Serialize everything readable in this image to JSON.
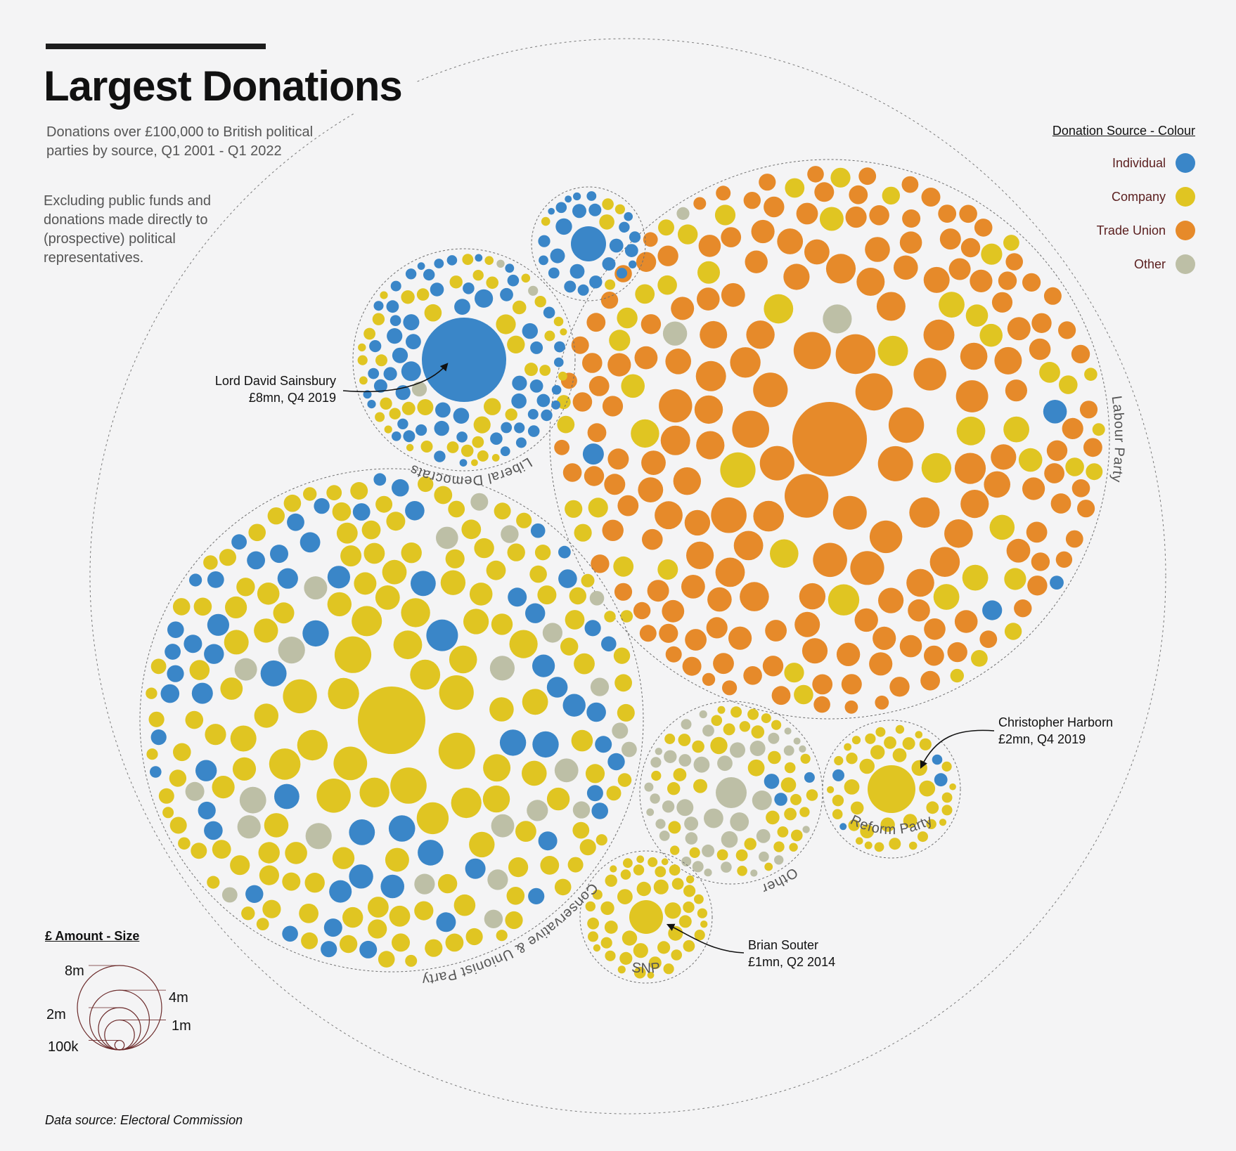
{
  "header": {
    "title": "Largest Donations",
    "subtitle": "Donations over £100,000 to British political parties by source, Q1 2001 - Q1 2022",
    "note": "Excluding public funds and donations made directly to (prospective) political representatives."
  },
  "legend": {
    "title": "Donation Source - Colour",
    "items": [
      {
        "label": "Individual",
        "color": "#3a86c8"
      },
      {
        "label": "Company",
        "color": "#e0c522"
      },
      {
        "label": "Trade Union",
        "color": "#e68a2a"
      },
      {
        "label": "Other",
        "color": "#bdbfa6"
      }
    ]
  },
  "size_legend": {
    "title": "£ Amount - Size",
    "labels": [
      "8m",
      "4m",
      "2m",
      "1m",
      "100k"
    ],
    "values_gbp": [
      8000000,
      4000000,
      2000000,
      1000000,
      100000
    ]
  },
  "source": "Data source: Electoral Commission",
  "chart_data": {
    "type": "packed-bubble",
    "title": "Largest Donations",
    "unit": "GBP",
    "groups": [
      {
        "label": "Labour Party",
        "dominant_source": "Trade Union",
        "mix": {
          "Trade Union": 0.78,
          "Company": 0.18,
          "Individual": 0.03,
          "Other": 0.01
        }
      },
      {
        "label": "Conservative & Unionist Party",
        "dominant_source": "Company",
        "mix": {
          "Company": 0.62,
          "Individual": 0.28,
          "Other": 0.1
        }
      },
      {
        "label": "Liberal Democrats",
        "dominant_source": "Individual",
        "mix": {
          "Individual": 0.52,
          "Company": 0.4,
          "Other": 0.08
        }
      },
      {
        "label": "",
        "dominant_source": "Individual",
        "mix": {
          "Individual": 0.85,
          "Company": 0.15
        }
      },
      {
        "label": "Other",
        "dominant_source": "Other",
        "mix": {
          "Other": 0.5,
          "Company": 0.45,
          "Individual": 0.05
        }
      },
      {
        "label": "Reform Party",
        "dominant_source": "Company",
        "mix": {
          "Company": 0.92,
          "Individual": 0.08
        }
      },
      {
        "label": "SNP",
        "dominant_source": "Company",
        "mix": {
          "Company": 1.0
        }
      }
    ],
    "annotations": [
      {
        "name": "Lord David Sainsbury",
        "detail": "£8mn, Q4 2019",
        "party": "Liberal Democrats",
        "source": "Company",
        "value_gbp": 8000000
      },
      {
        "name": "Christopher Harborn",
        "detail": "£2mn, Q4 2019",
        "party": "Reform Party",
        "source": "Company",
        "value_gbp": 2000000
      },
      {
        "name": "Brian Souter",
        "detail": "£1mn, Q2 2014",
        "party": "SNP",
        "source": "Company",
        "value_gbp": 1000000
      }
    ]
  }
}
